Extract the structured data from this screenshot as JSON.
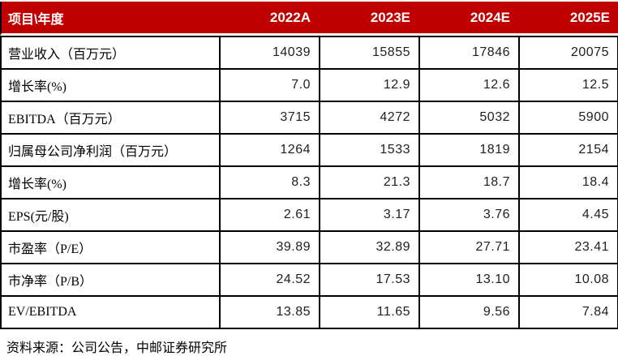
{
  "table": {
    "header": {
      "label": "项目\\年度",
      "columns": [
        "2022A",
        "2023E",
        "2024E",
        "2025E"
      ]
    },
    "rows": [
      {
        "label": "营业收入（百万元）",
        "values": [
          "14039",
          "15855",
          "17846",
          "20075"
        ]
      },
      {
        "label": "增长率(%)",
        "values": [
          "7.0",
          "12.9",
          "12.6",
          "12.5"
        ]
      },
      {
        "label": "EBITDA（百万元）",
        "values": [
          "3715",
          "4272",
          "5032",
          "5900"
        ]
      },
      {
        "label": "归属母公司净利润（百万元）",
        "values": [
          "1264",
          "1533",
          "1819",
          "2154"
        ]
      },
      {
        "label": "增长率(%)",
        "values": [
          "8.3",
          "21.3",
          "18.7",
          "18.4"
        ]
      },
      {
        "label": "EPS(元/股)",
        "values": [
          "2.61",
          "3.17",
          "3.76",
          "4.45"
        ]
      },
      {
        "label": "市盈率（P/E）",
        "values": [
          "39.89",
          "32.89",
          "27.71",
          "23.41"
        ]
      },
      {
        "label": "市净率（P/B）",
        "values": [
          "24.52",
          "17.53",
          "13.10",
          "10.08"
        ]
      },
      {
        "label": "EV/EBITDA",
        "values": [
          "13.85",
          "11.65",
          "9.56",
          "7.84"
        ]
      }
    ],
    "source_note": "资料来源：公司公告，中邮证券研究所"
  },
  "colors": {
    "header_bg": "#C00000",
    "header_text": "#FFFFFF",
    "border": "#000000",
    "value_text": "#1F1F1F"
  }
}
